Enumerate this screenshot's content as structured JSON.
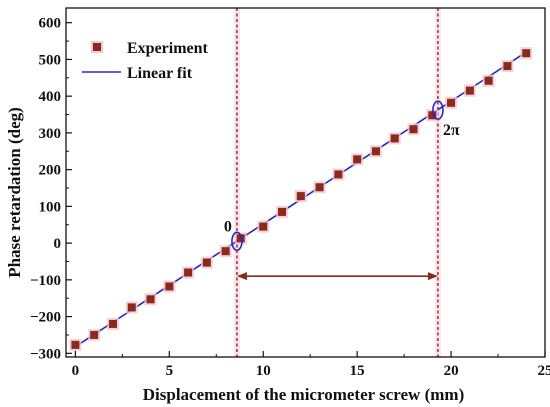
{
  "chart_data": {
    "type": "scatter",
    "xlabel": "Displacement of the micrometer screw (mm)",
    "ylabel": "Phase retardation (deg)",
    "xlim": [
      -0.5,
      25
    ],
    "ylim": [
      -310,
      640
    ],
    "xticks": [
      0,
      5,
      10,
      15,
      20,
      25
    ],
    "yticks": [
      -300,
      -200,
      -100,
      0,
      100,
      200,
      300,
      400,
      500,
      600
    ],
    "xtick_labels": [
      "0",
      "5",
      "10",
      "15",
      "20",
      "25"
    ],
    "ytick_labels": [
      "−300",
      "−200",
      "−100",
      "0",
      "100",
      "200",
      "300",
      "400",
      "500",
      "600"
    ],
    "grid": false,
    "legend_position": "top-left",
    "series": [
      {
        "name": "Experiment",
        "kind": "scatter",
        "color": "#8b2a1a",
        "halo_color": "#f3c6d6",
        "x": [
          0,
          1,
          2,
          3,
          4,
          5,
          6,
          7,
          8,
          8.8,
          10,
          11,
          12,
          13,
          14,
          15,
          16,
          17,
          18,
          19,
          20,
          21,
          22,
          23,
          24
        ],
        "y": [
          -277,
          -250,
          -220,
          -175,
          -153,
          -118,
          -80,
          -53,
          -22,
          13,
          45,
          85,
          128,
          152,
          187,
          228,
          250,
          285,
          310,
          348,
          382,
          415,
          442,
          482,
          517
        ]
      },
      {
        "name": "Linear fit",
        "kind": "line",
        "color": "#2626c8",
        "x": [
          0,
          24
        ],
        "y": [
          -282,
          520
        ]
      }
    ],
    "vertical_lines": [
      {
        "x": 8.6,
        "color": "#8b2a1a",
        "style": "dashed"
      },
      {
        "x": 19.3,
        "color": "#8b2a1a",
        "style": "dashed"
      }
    ],
    "arrow": {
      "x_start": 8.6,
      "x_end": 19.3,
      "y": -90,
      "color": "#8b2a1a",
      "style": "double"
    },
    "annotations": [
      {
        "text": "0",
        "x": 8.6,
        "y": 5,
        "marker": "ellipse",
        "marker_color": "#2626c8"
      },
      {
        "text": "2π",
        "x": 19.3,
        "y": 362,
        "marker": "ellipse",
        "marker_color": "#2626c8"
      }
    ]
  }
}
